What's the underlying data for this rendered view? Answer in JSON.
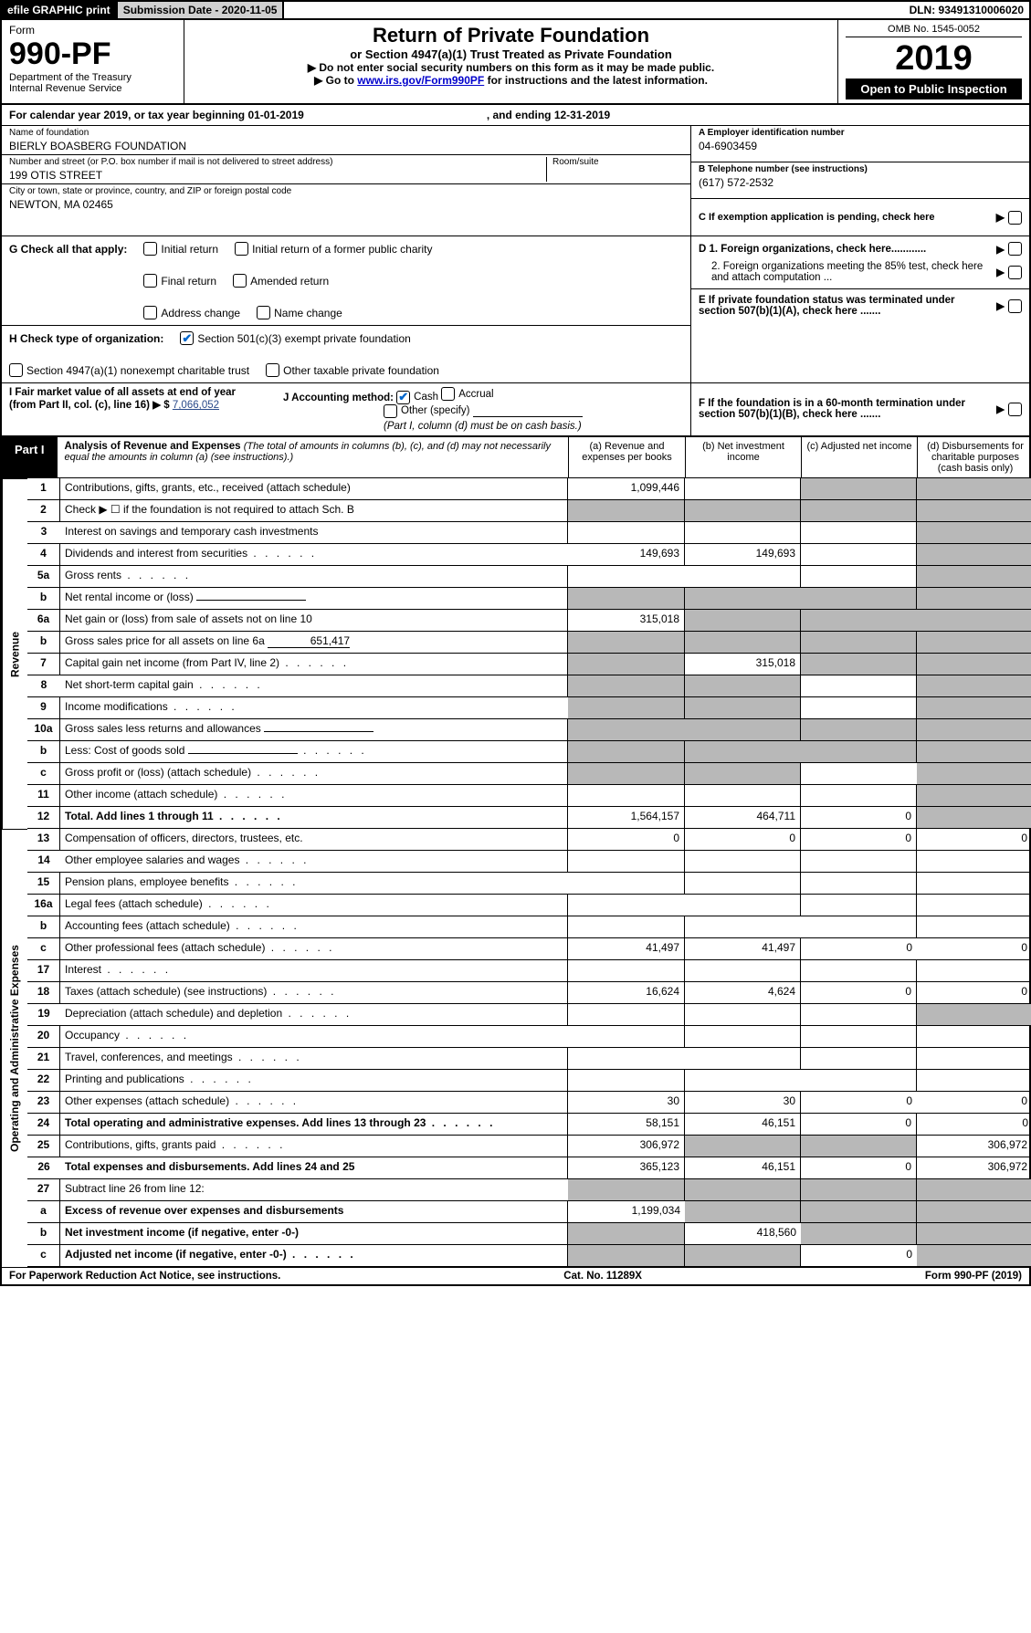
{
  "topbar": {
    "efile": "efile GRAPHIC print",
    "submission_label": "Submission Date - 2020-11-05",
    "dln_label": "DLN: 93491310006020"
  },
  "header": {
    "form_word": "Form",
    "form_no": "990-PF",
    "dept": "Department of the Treasury",
    "irs": "Internal Revenue Service",
    "title": "Return of Private Foundation",
    "subtitle": "or Section 4947(a)(1) Trust Treated as Private Foundation",
    "note1": "▶ Do not enter social security numbers on this form as it may be made public.",
    "note2_pre": "▶ Go to ",
    "note2_link": "www.irs.gov/Form990PF",
    "note2_post": " for instructions and the latest information.",
    "omb": "OMB No. 1545-0052",
    "year": "2019",
    "open": "Open to Public Inspection"
  },
  "cal": {
    "text": "For calendar year 2019, or tax year beginning 01-01-2019",
    "ending": ", and ending 12-31-2019"
  },
  "foundation": {
    "name_label": "Name of foundation",
    "name": "BIERLY BOASBERG FOUNDATION",
    "addr_label": "Number and street (or P.O. box number if mail is not delivered to street address)",
    "addr": "199 OTIS STREET",
    "room_label": "Room/suite",
    "city_label": "City or town, state or province, country, and ZIP or foreign postal code",
    "city": "NEWTON, MA  02465",
    "ein_label": "A Employer identification number",
    "ein": "04-6903459",
    "tel_label": "B Telephone number (see instructions)",
    "tel": "(617) 572-2532",
    "c_label": "C If exemption application is pending, check here",
    "d1": "D 1. Foreign organizations, check here............",
    "d2": "2. Foreign organizations meeting the 85% test, check here and attach computation ...",
    "e": "E  If private foundation status was terminated under section 507(b)(1)(A), check here .......",
    "f": "F  If the foundation is in a 60-month termination under section 507(b)(1)(B), check here .......",
    "g_label": "G Check all that apply:",
    "g_opts": [
      "Initial return",
      "Final return",
      "Address change",
      "Initial return of a former public charity",
      "Amended return",
      "Name change"
    ],
    "h_label": "H Check type of organization:",
    "h_opt1": "Section 501(c)(3) exempt private foundation",
    "h_opt2": "Section 4947(a)(1) nonexempt charitable trust",
    "h_opt3": "Other taxable private foundation",
    "i_label": "I Fair market value of all assets at end of year (from Part II, col. (c), line 16) ▶ $",
    "i_val": "7,066,052",
    "j_label": "J Accounting method:",
    "j_cash": "Cash",
    "j_accrual": "Accrual",
    "j_other": "Other (specify)",
    "j_note": "(Part I, column (d) must be on cash basis.)"
  },
  "part1": {
    "tab": "Part I",
    "title": "Analysis of Revenue and Expenses",
    "sub": "(The total of amounts in columns (b), (c), and (d) may not necessarily equal the amounts in column (a) (see instructions).)",
    "col_a": "(a)   Revenue and expenses per books",
    "col_b": "(b)  Net investment income",
    "col_c": "(c)  Adjusted net income",
    "col_d": "(d)  Disbursements for charitable purposes (cash basis only)"
  },
  "sides": {
    "revenue": "Revenue",
    "expenses": "Operating and Administrative Expenses"
  },
  "rows": [
    {
      "n": "1",
      "t": "Contributions, gifts, grants, etc., received (attach schedule)",
      "a": "1,099,446",
      "b": "",
      "c": "",
      "d": "",
      "sd": true,
      "sc": true
    },
    {
      "n": "2",
      "t": "Check ▶ ☐ if the foundation is not required to attach Sch. B",
      "a": "",
      "b": "",
      "c": "",
      "d": "",
      "sd": true,
      "sc": true,
      "sb": true,
      "sa": true
    },
    {
      "n": "3",
      "t": "Interest on savings and temporary cash investments",
      "a": "",
      "b": "",
      "c": "",
      "d": "",
      "sd": true
    },
    {
      "n": "4",
      "t": "Dividends and interest from securities",
      "a": "149,693",
      "b": "149,693",
      "c": "",
      "d": "",
      "sd": true,
      "dots": true
    },
    {
      "n": "5a",
      "t": "Gross rents",
      "a": "",
      "b": "",
      "c": "",
      "d": "",
      "sd": true,
      "dots": true
    },
    {
      "n": "b",
      "t": "Net rental income or (loss)",
      "a": "",
      "b": "",
      "c": "",
      "d": "",
      "sd": true,
      "sa": true,
      "sb": true,
      "sc": true,
      "inline": true
    },
    {
      "n": "6a",
      "t": "Net gain or (loss) from sale of assets not on line 10",
      "a": "315,018",
      "b": "",
      "c": "",
      "d": "",
      "sd": true,
      "sb": true,
      "sc": true
    },
    {
      "n": "b",
      "t": "Gross sales price for all assets on line 6a",
      "iv": "651,417",
      "a": "",
      "b": "",
      "c": "",
      "d": "",
      "sd": true,
      "sa": true,
      "sb": true,
      "sc": true,
      "inline": true
    },
    {
      "n": "7",
      "t": "Capital gain net income (from Part IV, line 2)",
      "a": "",
      "b": "315,018",
      "c": "",
      "d": "",
      "sd": true,
      "sa": true,
      "sc": true,
      "dots": true
    },
    {
      "n": "8",
      "t": "Net short-term capital gain",
      "a": "",
      "b": "",
      "c": "",
      "d": "",
      "sd": true,
      "sa": true,
      "sb": true,
      "dots": true
    },
    {
      "n": "9",
      "t": "Income modifications",
      "a": "",
      "b": "",
      "c": "",
      "d": "",
      "sd": true,
      "sa": true,
      "sb": true,
      "dots": true
    },
    {
      "n": "10a",
      "t": "Gross sales less returns and allowances",
      "a": "",
      "b": "",
      "c": "",
      "d": "",
      "sd": true,
      "sa": true,
      "sb": true,
      "sc": true,
      "inline": true
    },
    {
      "n": "b",
      "t": "Less: Cost of goods sold",
      "a": "",
      "b": "",
      "c": "",
      "d": "",
      "sd": true,
      "sa": true,
      "sb": true,
      "sc": true,
      "inline": true,
      "dots": true
    },
    {
      "n": "c",
      "t": "Gross profit or (loss) (attach schedule)",
      "a": "",
      "b": "",
      "c": "",
      "d": "",
      "sd": true,
      "sa": true,
      "sb": true,
      "dots": true
    },
    {
      "n": "11",
      "t": "Other income (attach schedule)",
      "a": "",
      "b": "",
      "c": "",
      "d": "",
      "sd": true,
      "dots": true
    },
    {
      "n": "12",
      "t": "Total. Add lines 1 through 11",
      "bold": true,
      "a": "1,564,157",
      "b": "464,711",
      "c": "0",
      "d": "",
      "sd": true,
      "dots": true
    },
    {
      "n": "13",
      "t": "Compensation of officers, directors, trustees, etc.",
      "a": "0",
      "b": "0",
      "c": "0",
      "d": "0"
    },
    {
      "n": "14",
      "t": "Other employee salaries and wages",
      "a": "",
      "b": "",
      "c": "",
      "d": "",
      "dots": true
    },
    {
      "n": "15",
      "t": "Pension plans, employee benefits",
      "a": "",
      "b": "",
      "c": "",
      "d": "",
      "dots": true
    },
    {
      "n": "16a",
      "t": "Legal fees (attach schedule)",
      "a": "",
      "b": "",
      "c": "",
      "d": "",
      "dots": true
    },
    {
      "n": "b",
      "t": "Accounting fees (attach schedule)",
      "a": "",
      "b": "",
      "c": "",
      "d": "",
      "dots": true
    },
    {
      "n": "c",
      "t": "Other professional fees (attach schedule)",
      "a": "41,497",
      "b": "41,497",
      "c": "0",
      "d": "0",
      "dots": true
    },
    {
      "n": "17",
      "t": "Interest",
      "a": "",
      "b": "",
      "c": "",
      "d": "",
      "dots": true
    },
    {
      "n": "18",
      "t": "Taxes (attach schedule) (see instructions)",
      "a": "16,624",
      "b": "4,624",
      "c": "0",
      "d": "0",
      "dots": true
    },
    {
      "n": "19",
      "t": "Depreciation (attach schedule) and depletion",
      "a": "",
      "b": "",
      "c": "",
      "d": "",
      "sd": true,
      "dots": true
    },
    {
      "n": "20",
      "t": "Occupancy",
      "a": "",
      "b": "",
      "c": "",
      "d": "",
      "dots": true
    },
    {
      "n": "21",
      "t": "Travel, conferences, and meetings",
      "a": "",
      "b": "",
      "c": "",
      "d": "",
      "dots": true
    },
    {
      "n": "22",
      "t": "Printing and publications",
      "a": "",
      "b": "",
      "c": "",
      "d": "",
      "dots": true
    },
    {
      "n": "23",
      "t": "Other expenses (attach schedule)",
      "a": "30",
      "b": "30",
      "c": "0",
      "d": "0",
      "dots": true
    },
    {
      "n": "24",
      "t": "Total operating and administrative expenses. Add lines 13 through 23",
      "bold": true,
      "a": "58,151",
      "b": "46,151",
      "c": "0",
      "d": "0",
      "dots": true
    },
    {
      "n": "25",
      "t": "Contributions, gifts, grants paid",
      "a": "306,972",
      "b": "",
      "c": "",
      "d": "306,972",
      "sb": true,
      "sc": true,
      "dots": true
    },
    {
      "n": "26",
      "t": "Total expenses and disbursements. Add lines 24 and 25",
      "bold": true,
      "a": "365,123",
      "b": "46,151",
      "c": "0",
      "d": "306,972"
    },
    {
      "n": "27",
      "t": "Subtract line 26 from line 12:",
      "a": "",
      "b": "",
      "c": "",
      "d": "",
      "sa": true,
      "sb": true,
      "sc": true,
      "sd": true
    },
    {
      "n": "a",
      "t": "Excess of revenue over expenses and disbursements",
      "bold": true,
      "a": "1,199,034",
      "b": "",
      "c": "",
      "d": "",
      "sb": true,
      "sc": true,
      "sd": true
    },
    {
      "n": "b",
      "t": "Net investment income (if negative, enter -0-)",
      "bold": true,
      "a": "",
      "b": "418,560",
      "c": "",
      "d": "",
      "sa": true,
      "sc": true,
      "sd": true
    },
    {
      "n": "c",
      "t": "Adjusted net income (if negative, enter -0-)",
      "bold": true,
      "a": "",
      "b": "",
      "c": "0",
      "d": "",
      "sa": true,
      "sb": true,
      "sd": true,
      "dots": true
    }
  ],
  "footer": {
    "left": "For Paperwork Reduction Act Notice, see instructions.",
    "mid": "Cat. No. 11289X",
    "right": "Form 990-PF (2019)"
  },
  "colors": {
    "link": "#0000cc",
    "shade": "#b8b8b8",
    "check": "#0066cc"
  }
}
